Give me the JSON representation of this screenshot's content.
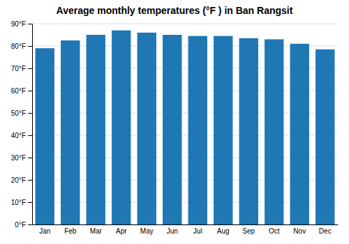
{
  "chart_data": {
    "type": "bar",
    "title": "Average monthly temperatures (°F ) in Ban Rangsit",
    "categories": [
      "Jan",
      "Feb",
      "Mar",
      "Apr",
      "May",
      "Jun",
      "Jul",
      "Aug",
      "Sep",
      "Oct",
      "Nov",
      "Dec"
    ],
    "values": [
      79.0,
      82.5,
      85.0,
      87.0,
      86.0,
      85.0,
      84.5,
      84.5,
      83.5,
      83.0,
      81.0,
      78.5
    ],
    "ylim": [
      0,
      90
    ],
    "yticks": [
      {
        "value": 0,
        "label": "0°F"
      },
      {
        "value": 10,
        "label": "10°F"
      },
      {
        "value": 20,
        "label": "20°F"
      },
      {
        "value": 30,
        "label": "30°F"
      },
      {
        "value": 40,
        "label": "40°F"
      },
      {
        "value": 50,
        "label": "50°F"
      },
      {
        "value": 60,
        "label": "60°F"
      },
      {
        "value": 70,
        "label": "70°F"
      },
      {
        "value": 80,
        "label": "80°F"
      },
      {
        "value": 90,
        "label": "90°F"
      }
    ],
    "grid": true
  }
}
